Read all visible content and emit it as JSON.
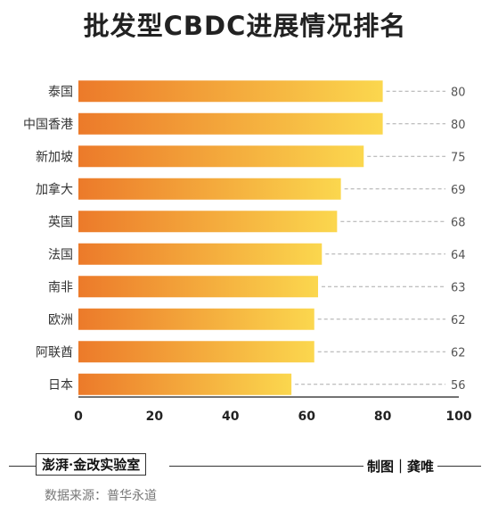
{
  "chart_data": {
    "type": "bar",
    "orientation": "horizontal",
    "title": "批发型CBDC进展情况排名",
    "categories": [
      "泰国",
      "中国香港",
      "新加坡",
      "加拿大",
      "英国",
      "法国",
      "南非",
      "欧洲",
      "阿联酋",
      "日本"
    ],
    "values": [
      80,
      80,
      75,
      69,
      68,
      64,
      63,
      62,
      62,
      56
    ],
    "value_labels": [
      "80",
      "80",
      "75",
      "69",
      "68",
      "64",
      "63",
      "62",
      "62",
      "56"
    ],
    "xlim": [
      0,
      100
    ],
    "x_ticks": [
      "0",
      "20",
      "40",
      "60",
      "80",
      "100"
    ],
    "gradient_start": "#ec7a2a",
    "gradient_end": "#fbd74e",
    "grid": false
  },
  "footer": {
    "logo": "澎湃·金改实验室",
    "credit": "制图｜龚唯",
    "source": "数据来源：普华永道"
  }
}
